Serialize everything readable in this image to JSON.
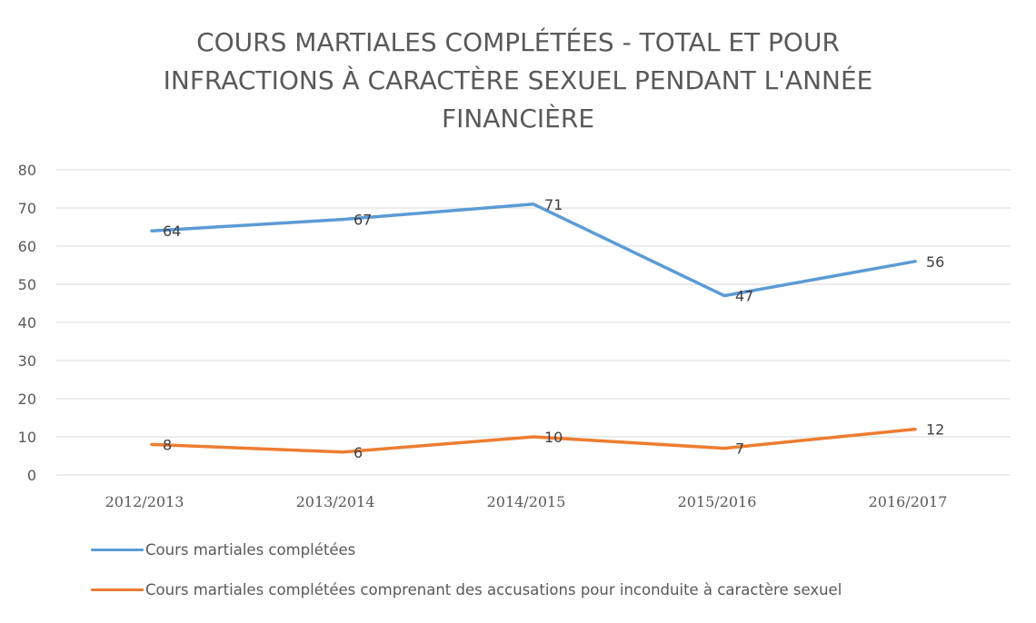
{
  "chart_data": {
    "type": "line",
    "title_lines": [
      "COURS MARTIALES COMPLÉTÉES - TOTAL ET POUR",
      "INFRACTIONS À CARACTÈRE SEXUEL PENDANT L'ANNÉE",
      "FINANCIÈRE"
    ],
    "categories": [
      "2012/2013",
      "2013/2014",
      "2014/2015",
      "2015/2016",
      "2016/2017"
    ],
    "ylim": [
      0,
      80
    ],
    "yticks": [
      0,
      10,
      20,
      30,
      40,
      50,
      60,
      70,
      80
    ],
    "grid": true,
    "legend_position": "bottom-left",
    "series": [
      {
        "name": "Cours martiales complétées",
        "values": [
          64,
          67,
          71,
          47,
          56
        ],
        "color": "#5B9BD5"
      },
      {
        "name": "Cours martiales complétées comprenant des accusations pour inconduite à caractère sexuel",
        "values": [
          8,
          6,
          10,
          7,
          12
        ],
        "color": "#ED7D31"
      }
    ]
  }
}
